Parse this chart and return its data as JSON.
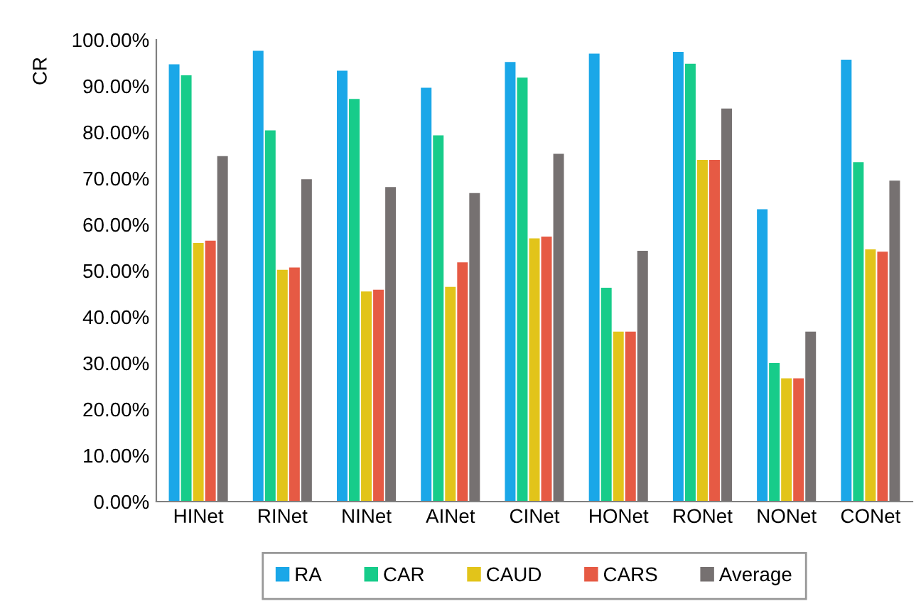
{
  "chart_data": {
    "type": "bar",
    "ylabel": "CR",
    "categories": [
      "HINet",
      "RINet",
      "NINet",
      "AINet",
      "CINet",
      "HONet",
      "RONet",
      "NONet",
      "CONet"
    ],
    "series": [
      {
        "name": "RA",
        "color": "#1aa7e8",
        "values": [
          94.7,
          97.6,
          93.3,
          89.6,
          95.2,
          97.0,
          97.4,
          63.3,
          95.7
        ]
      },
      {
        "name": "CAR",
        "color": "#17cc8a",
        "values": [
          92.3,
          80.4,
          87.2,
          79.3,
          91.8,
          46.3,
          94.8,
          30.0,
          73.5
        ]
      },
      {
        "name": "CAUD",
        "color": "#e2c41a",
        "values": [
          56.0,
          50.2,
          45.5,
          46.5,
          57.0,
          36.8,
          74.0,
          26.7,
          54.6
        ]
      },
      {
        "name": "CARS",
        "color": "#e65a44",
        "values": [
          56.5,
          50.7,
          45.9,
          51.8,
          57.4,
          36.8,
          74.0,
          26.7,
          54.1
        ]
      },
      {
        "name": "Average",
        "color": "#767171",
        "values": [
          74.8,
          69.8,
          68.1,
          66.8,
          75.3,
          54.3,
          85.1,
          36.8,
          69.5
        ]
      }
    ],
    "ylim": [
      0,
      100
    ],
    "yticks": [
      {
        "value": 0,
        "label": "0.00%"
      },
      {
        "value": 10,
        "label": "10.00%"
      },
      {
        "value": 20,
        "label": "20.00%"
      },
      {
        "value": 30,
        "label": "30.00%"
      },
      {
        "value": 40,
        "label": "40.00%"
      },
      {
        "value": 50,
        "label": "50.00%"
      },
      {
        "value": 60,
        "label": "60.00%"
      },
      {
        "value": 70,
        "label": "70.00%"
      },
      {
        "value": 80,
        "label": "80.00%"
      },
      {
        "value": 90,
        "label": "90.00%"
      },
      {
        "value": 100,
        "label": "100.00%"
      }
    ],
    "legend": "bottom",
    "grid": false
  }
}
